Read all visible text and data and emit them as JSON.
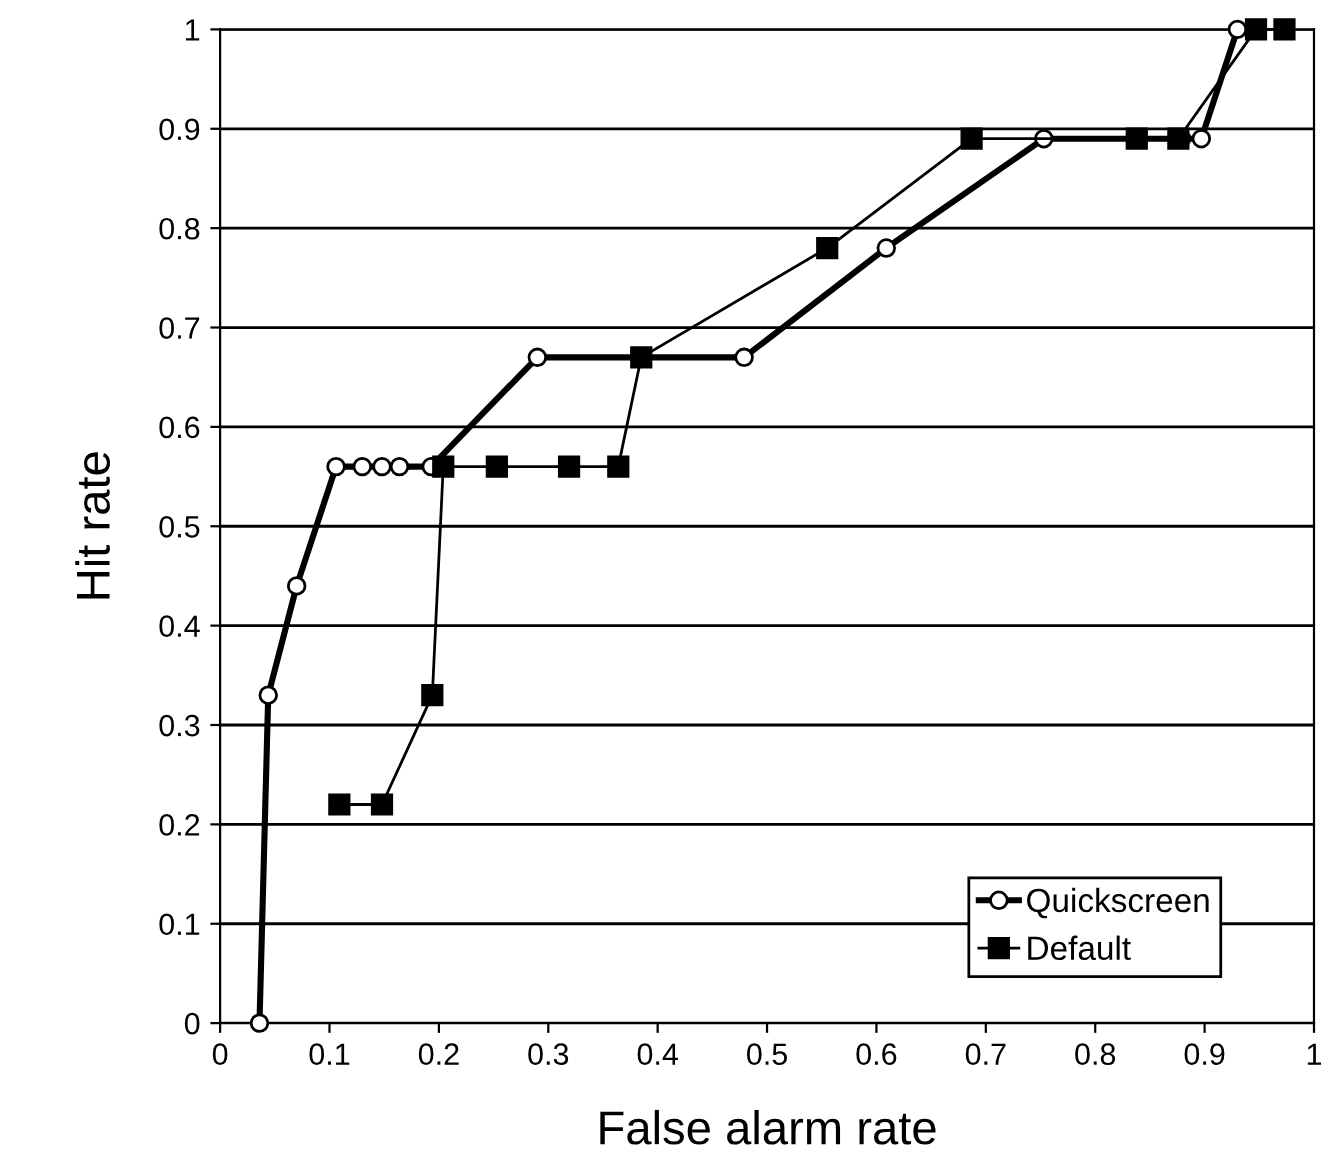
{
  "chart_data": {
    "type": "line",
    "xlabel": "False alarm rate",
    "ylabel": "Hit rate",
    "xlim": [
      0,
      1
    ],
    "ylim": [
      0,
      1
    ],
    "xticks": [
      0,
      0.1,
      0.2,
      0.3,
      0.4,
      0.5,
      0.6,
      0.7,
      0.8,
      0.9,
      1
    ],
    "yticks": [
      0,
      0.1,
      0.2,
      0.3,
      0.4,
      0.5,
      0.6,
      0.7,
      0.8,
      0.9,
      1
    ],
    "grid": "y",
    "legend": "bottom right",
    "series": [
      {
        "name": "Quickscreen",
        "color": "#000000",
        "marker": "circle",
        "x": [
          0.036,
          0.044,
          0.07,
          0.106,
          0.13,
          0.148,
          0.164,
          0.193,
          0.29,
          0.479,
          0.609,
          0.753,
          0.879,
          0.897,
          0.93
        ],
        "values": [
          0,
          0.33,
          0.44,
          0.56,
          0.56,
          0.56,
          0.56,
          0.56,
          0.67,
          0.67,
          0.78,
          0.89,
          0.89,
          0.89,
          1
        ]
      },
      {
        "name": "Default",
        "color": "#000000",
        "marker": "square",
        "x": [
          0.109,
          0.148,
          0.194,
          0.204,
          0.253,
          0.319,
          0.364,
          0.385,
          0.555,
          0.687,
          0.838,
          0.876,
          0.947,
          0.973
        ],
        "values": [
          0.22,
          0.22,
          0.33,
          0.56,
          0.56,
          0.56,
          0.56,
          0.67,
          0.78,
          0.89,
          0.89,
          0.89,
          1,
          1
        ]
      }
    ]
  }
}
